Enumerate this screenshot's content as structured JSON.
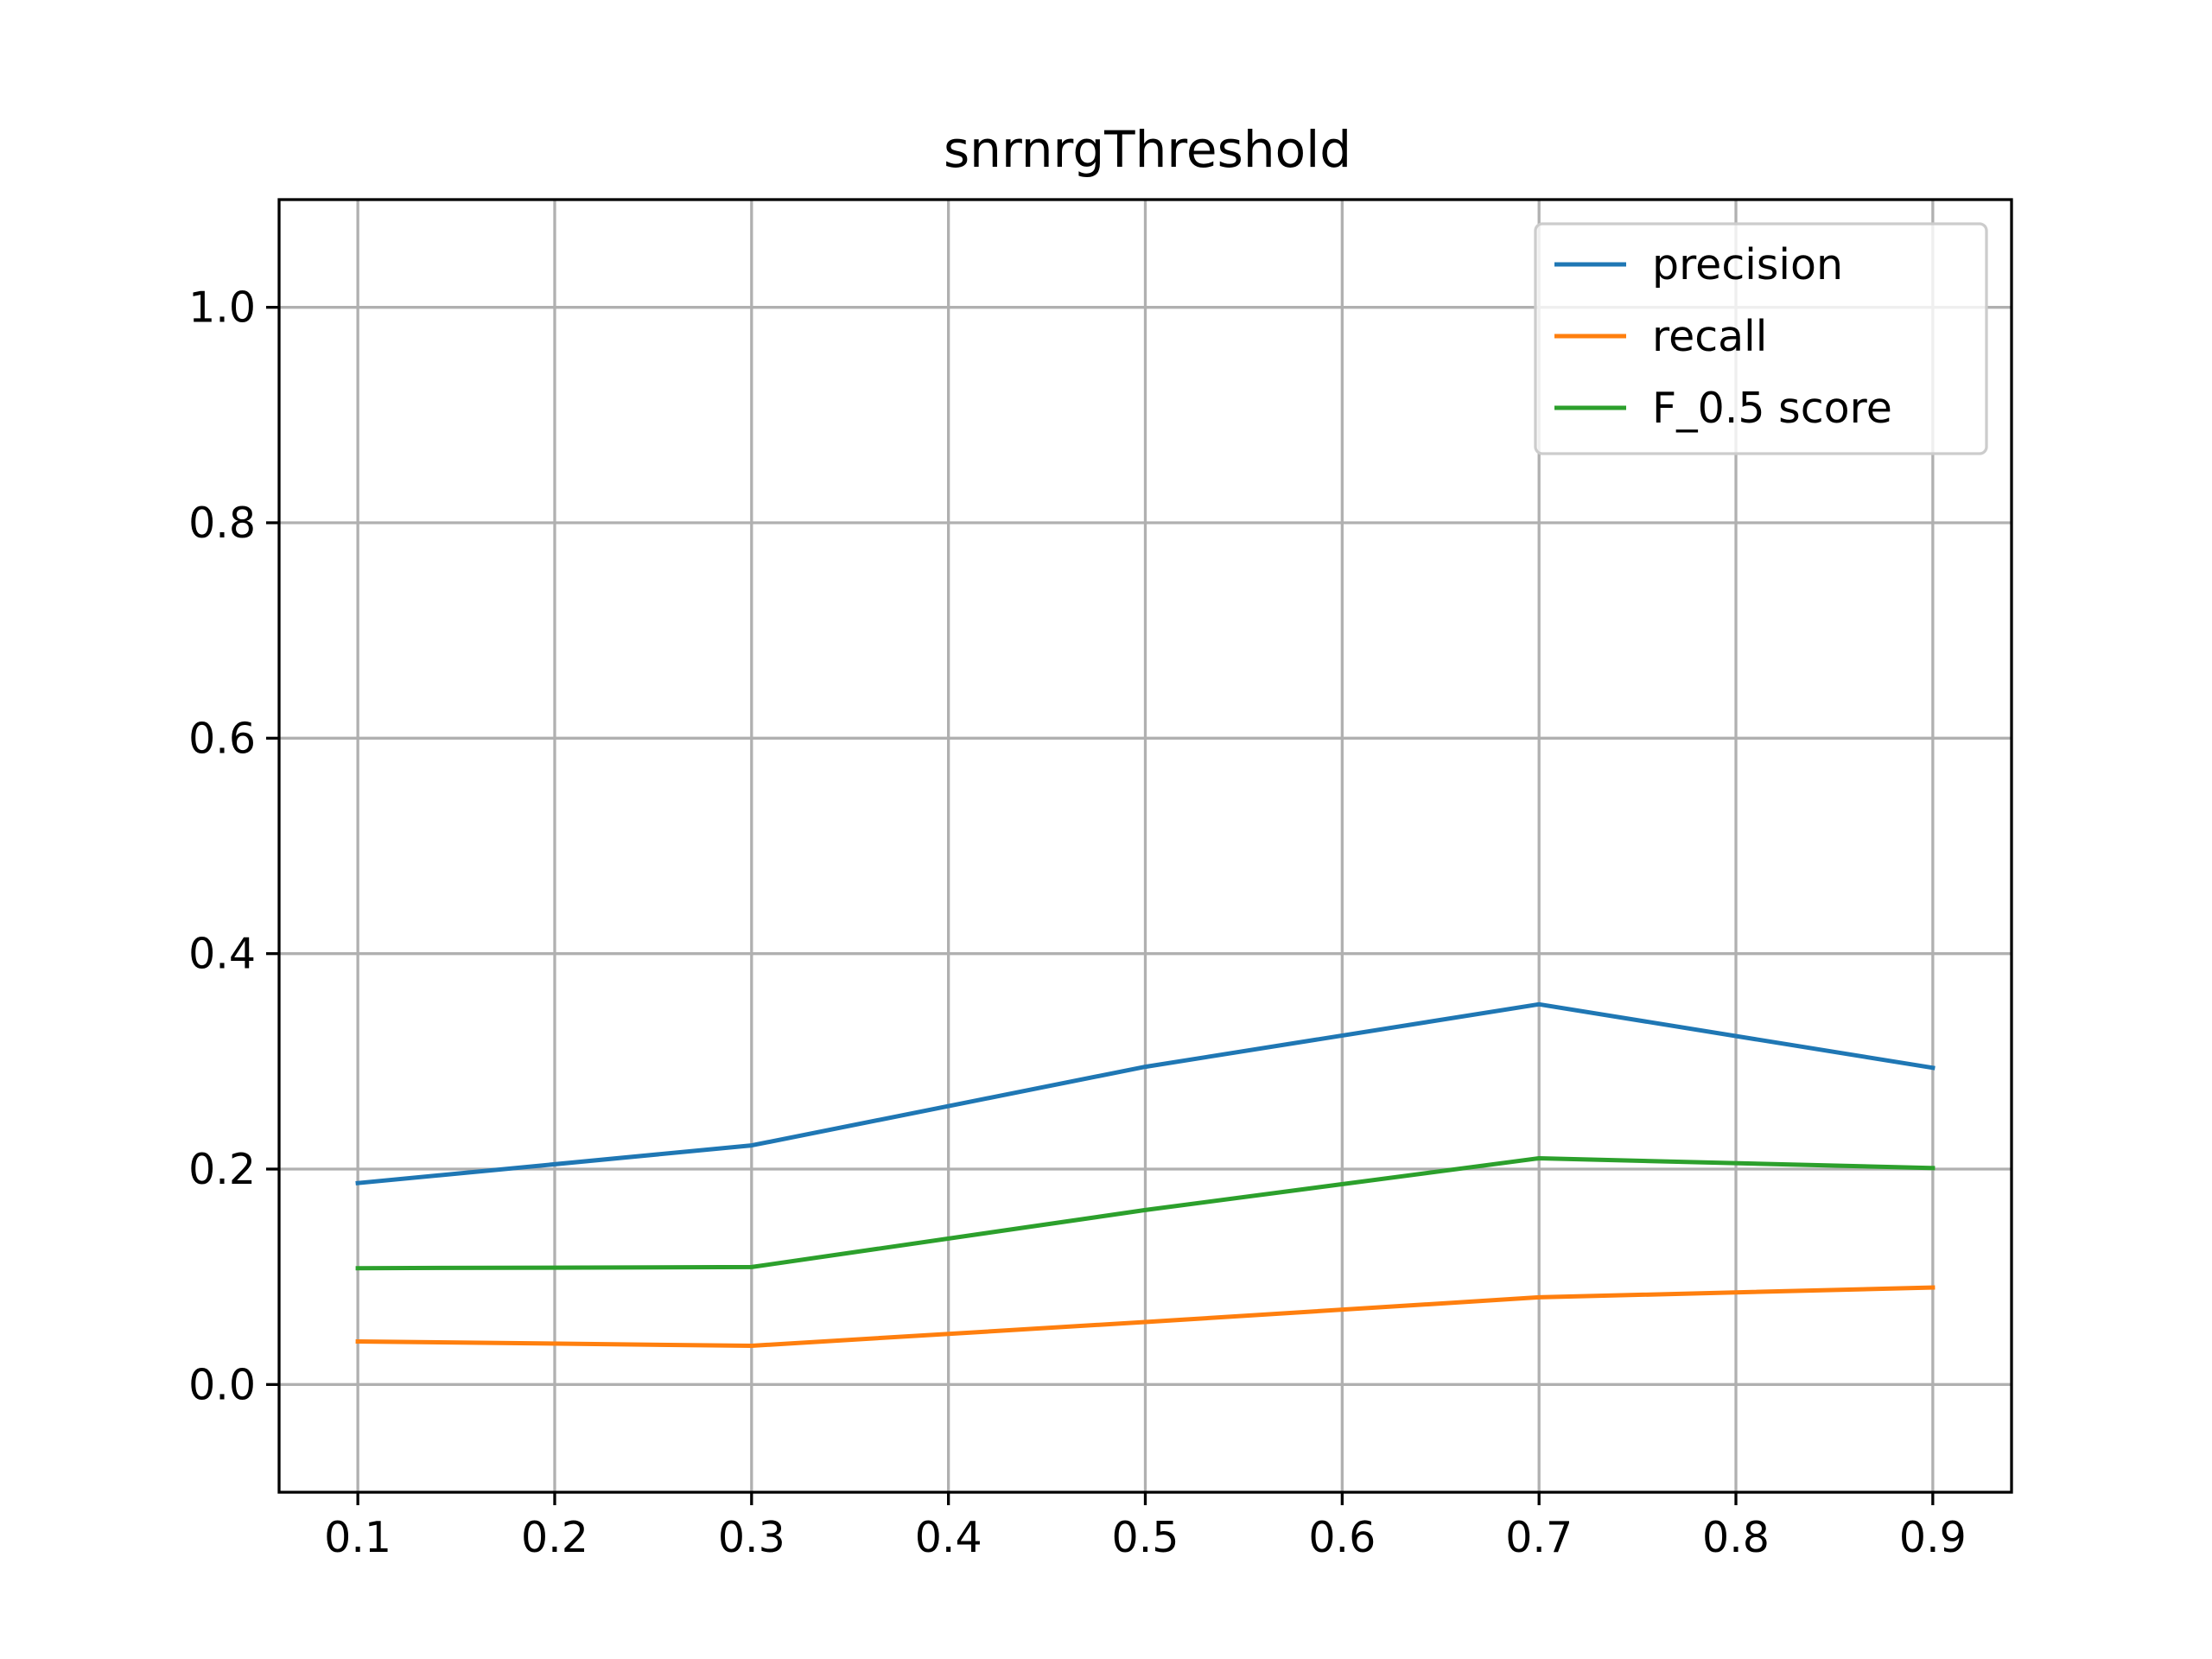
{
  "chart_data": {
    "type": "line",
    "title": "snrnrgThreshold",
    "xlabel": "",
    "ylabel": "",
    "x": [
      0.1,
      0.3,
      0.5,
      0.7,
      0.9
    ],
    "xlim": [
      0.06,
      0.94
    ],
    "ylim": [
      -0.1,
      1.1
    ],
    "xticks": [
      0.1,
      0.2,
      0.3,
      0.4,
      0.5,
      0.6,
      0.7,
      0.8,
      0.9
    ],
    "xtick_labels": [
      "0.1",
      "0.2",
      "0.3",
      "0.4",
      "0.5",
      "0.6",
      "0.7",
      "0.8",
      "0.9"
    ],
    "yticks": [
      0.0,
      0.2,
      0.4,
      0.6,
      0.8,
      1.0
    ],
    "ytick_labels": [
      "0.0",
      "0.2",
      "0.4",
      "0.6",
      "0.8",
      "1.0"
    ],
    "grid": true,
    "legend_position": "top-right",
    "series": [
      {
        "name": "precision",
        "color": "#1f77b4",
        "values": [
          0.187,
          0.222,
          0.295,
          0.353,
          0.294
        ]
      },
      {
        "name": "recall",
        "color": "#ff7f0e",
        "values": [
          0.04,
          0.036,
          0.058,
          0.081,
          0.09
        ]
      },
      {
        "name": "F_0.5 score",
        "color": "#2ca02c",
        "values": [
          0.108,
          0.109,
          0.162,
          0.21,
          0.201
        ]
      }
    ]
  }
}
